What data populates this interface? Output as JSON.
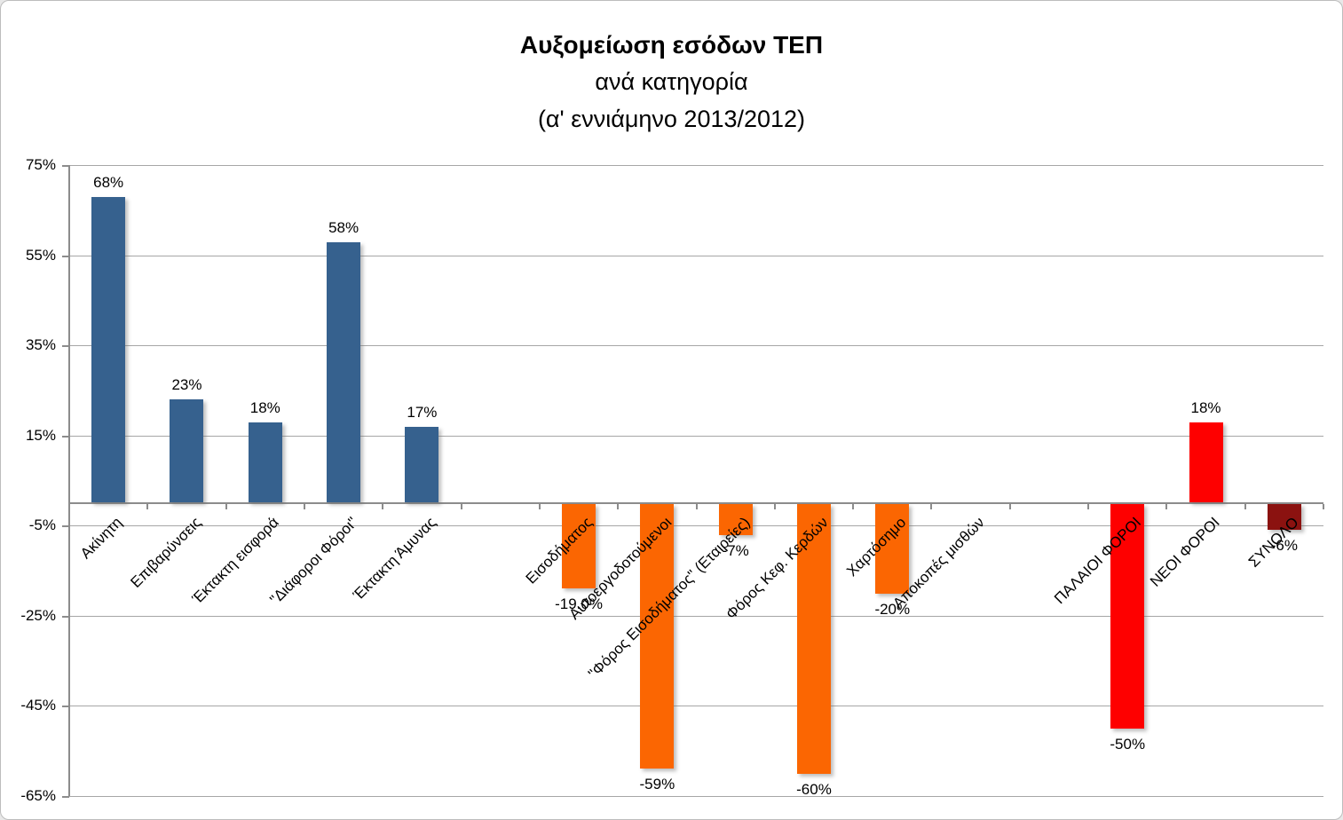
{
  "title": {
    "line1": "Αυξομείωση εσόδων ΤΕΠ",
    "line2": "ανά κατηγορία",
    "line3": "(α' εννιάμηνο 2013/2012)"
  },
  "chart_data": {
    "type": "bar",
    "title": "Αυξομείωση εσόδων ΤΕΠ ανά κατηγορία (α' εννιάμηνο 2013/2012)",
    "xlabel": "",
    "ylabel": "",
    "ylim": [
      -65,
      75
    ],
    "grid": true,
    "legend": false,
    "ytick_labels": [
      "75%",
      "55%",
      "35%",
      "15%",
      "-5%",
      "-25%",
      "-45%",
      "-65%"
    ],
    "ytick_values": [
      75,
      55,
      35,
      15,
      -5,
      -25,
      -45,
      -65
    ],
    "categories": [
      {
        "label": "Ακίνητη",
        "value": 68,
        "value_label": "68%",
        "color_key": "blue"
      },
      {
        "label": "Επιβαρύνσεις",
        "value": 23,
        "value_label": "23%",
        "color_key": "blue"
      },
      {
        "label": "Έκτακτη εισφορά",
        "value": 18,
        "value_label": "18%",
        "color_key": "blue"
      },
      {
        "label": "\"Διάφοροι Φόροι\"",
        "value": 58,
        "value_label": "58%",
        "color_key": "blue"
      },
      {
        "label": "Έκτακτη Άμυνας",
        "value": 17,
        "value_label": "17%",
        "color_key": "blue"
      },
      {
        "label": "",
        "value": null,
        "value_label": "",
        "color_key": null
      },
      {
        "label": "Εισοδήματος",
        "value": -19,
        "value_label": "-19.0%",
        "color_key": "orange"
      },
      {
        "label": "Αυτοεργοδοτούμενοι",
        "value": -59,
        "value_label": "-59%",
        "color_key": "orange"
      },
      {
        "label": "\"Φόρος Εισοδήματος\" (Εταιρείες)",
        "value": -7,
        "value_label": "-7%",
        "color_key": "orange"
      },
      {
        "label": "Φόρος Κεφ. Κερδών",
        "value": -60,
        "value_label": "-60%",
        "color_key": "orange"
      },
      {
        "label": "Χαρτόσημο",
        "value": -20,
        "value_label": "-20%",
        "color_key": "orange"
      },
      {
        "label": "Αποκοπές μισθών",
        "value": null,
        "value_label": "",
        "color_key": "orange"
      },
      {
        "label": "",
        "value": null,
        "value_label": "",
        "color_key": null
      },
      {
        "label": "ΠΑΛΑΙΟΙ ΦΟΡΟΙ",
        "value": -50,
        "value_label": "-50%",
        "color_key": "red"
      },
      {
        "label": "ΝΕΟΙ ΦΟΡΟΙ",
        "value": 18,
        "value_label": "18%",
        "color_key": "red"
      },
      {
        "label": "ΣΥΝΟΛΟ",
        "value": -6,
        "value_label": "-6%",
        "color_key": "darkred"
      }
    ],
    "colors": {
      "blue": "#36618e",
      "orange": "#fb6602",
      "red": "#fe0000",
      "darkred": "#8b1210",
      "gridline": "#a6a6a6",
      "axis": "#8c8c8c"
    }
  }
}
